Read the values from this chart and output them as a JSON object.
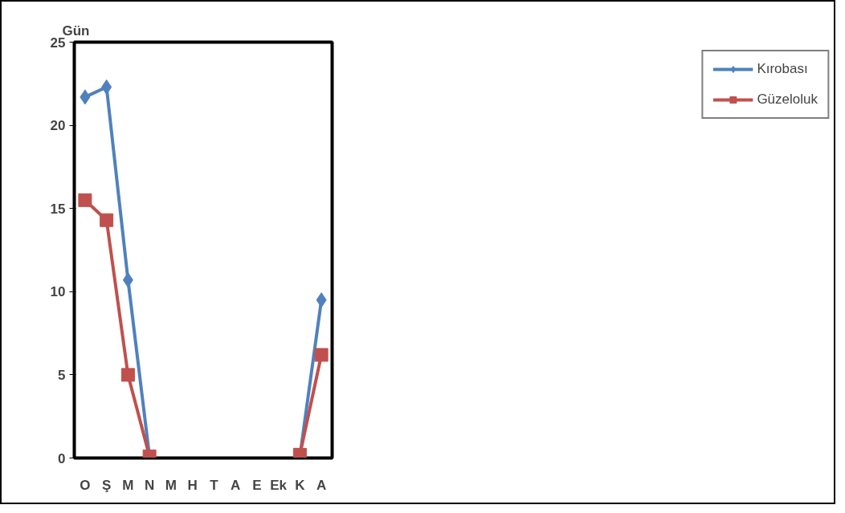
{
  "chart_data": {
    "type": "line",
    "ylabel": "Gün",
    "categories": [
      "O",
      "Ş",
      "M",
      "N",
      "M",
      "H",
      "T",
      "A",
      "E",
      "Ek",
      "K",
      "A"
    ],
    "series": [
      {
        "name": "Kırobası",
        "color": "#4f81bd",
        "marker": "diamond",
        "values": [
          21.7,
          22.3,
          10.7,
          0.1,
          null,
          null,
          null,
          null,
          null,
          null,
          0.1,
          9.5
        ]
      },
      {
        "name": "Güzeloluk",
        "color": "#c0504d",
        "marker": "square",
        "values": [
          15.5,
          14.3,
          5.0,
          0.1,
          null,
          null,
          null,
          null,
          null,
          null,
          0.2,
          6.2
        ]
      }
    ],
    "ylim": [
      0,
      25
    ],
    "yticks": [
      0,
      5,
      10,
      15,
      20,
      25
    ],
    "grid": false,
    "legend": "right"
  }
}
